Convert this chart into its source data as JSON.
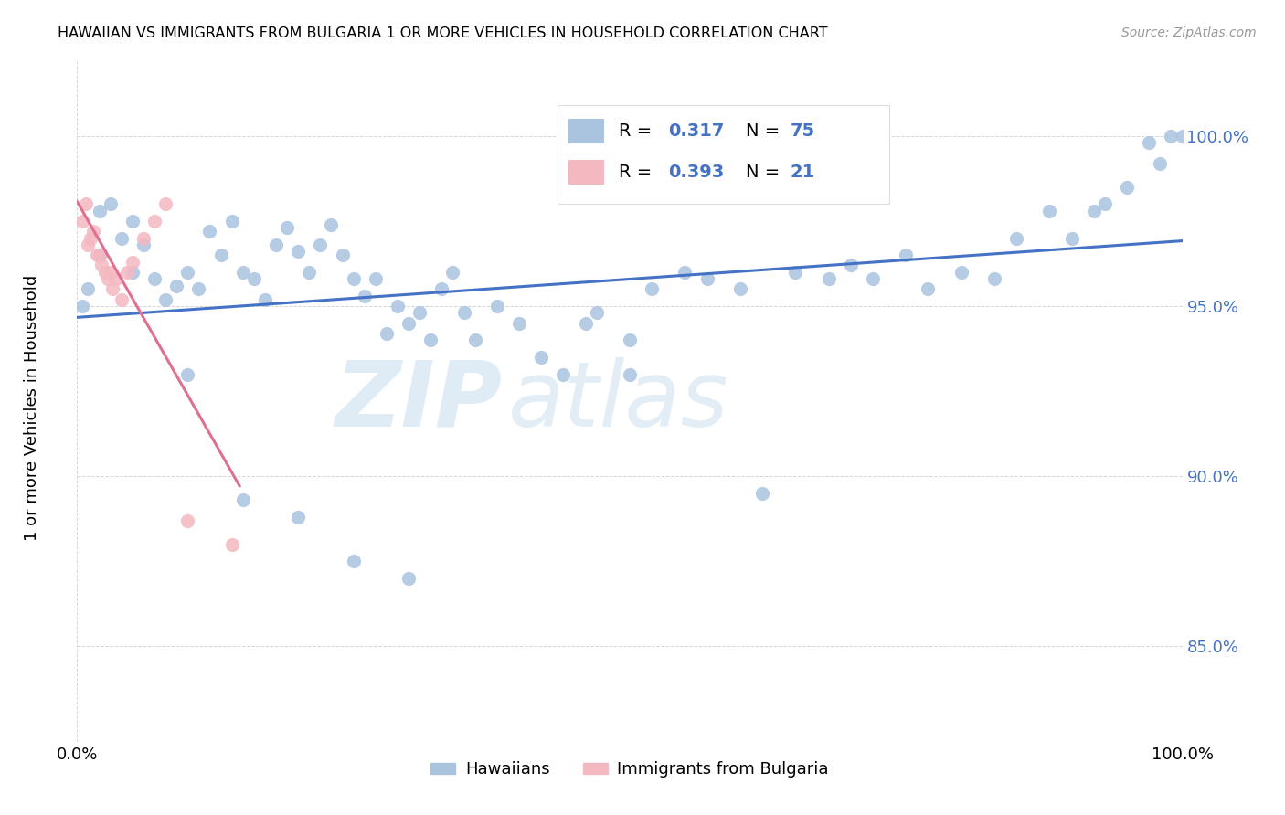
{
  "title": "HAWAIIAN VS IMMIGRANTS FROM BULGARIA 1 OR MORE VEHICLES IN HOUSEHOLD CORRELATION CHART",
  "source": "Source: ZipAtlas.com",
  "ylabel": "1 or more Vehicles in Household",
  "ytick_labels": [
    "85.0%",
    "90.0%",
    "95.0%",
    "100.0%"
  ],
  "ytick_values": [
    0.85,
    0.9,
    0.95,
    1.0
  ],
  "xtick_labels": [
    "0.0%",
    "100.0%"
  ],
  "xtick_values": [
    0.0,
    1.0
  ],
  "xlim": [
    0.0,
    1.0
  ],
  "ylim": [
    0.822,
    1.022
  ],
  "legend_hawaiian": "Hawaiians",
  "legend_bulgaria": "Immigrants from Bulgaria",
  "r_hawaiian": "0.317",
  "n_hawaiian": "75",
  "r_bulgaria": "0.393",
  "n_bulgaria": "21",
  "hawaiian_color": "#aac4e0",
  "hawaii_line_color": "#4472c4",
  "bulgaria_color": "#f4b8c1",
  "bulgaria_line_color": "#e07090",
  "legend_value_color": "#4472c4",
  "ytick_color": "#4472c4",
  "scatter_size": 120,
  "line_width": 2.2,
  "grid_color": "#cccccc",
  "title_fontsize": 11.5,
  "source_fontsize": 10,
  "tick_fontsize": 13,
  "legend_fontsize": 13,
  "hawaii_x": [
    0.005,
    0.01,
    0.02,
    0.02,
    0.03,
    0.04,
    0.05,
    0.05,
    0.06,
    0.07,
    0.08,
    0.09,
    0.1,
    0.11,
    0.12,
    0.13,
    0.14,
    0.15,
    0.16,
    0.17,
    0.18,
    0.19,
    0.2,
    0.21,
    0.22,
    0.23,
    0.24,
    0.25,
    0.26,
    0.27,
    0.28,
    0.29,
    0.3,
    0.31,
    0.32,
    0.33,
    0.34,
    0.35,
    0.36,
    0.38,
    0.4,
    0.42,
    0.44,
    0.46,
    0.47,
    0.5,
    0.52,
    0.55,
    0.57,
    0.6,
    0.62,
    0.65,
    0.68,
    0.7,
    0.72,
    0.75,
    0.77,
    0.8,
    0.83,
    0.85,
    0.88,
    0.9,
    0.92,
    0.93,
    0.95,
    0.97,
    0.98,
    0.99,
    1.0,
    0.1,
    0.15,
    0.2,
    0.25,
    0.3,
    0.5
  ],
  "hawaii_y": [
    0.95,
    0.955,
    0.978,
    0.965,
    0.98,
    0.97,
    0.975,
    0.96,
    0.968,
    0.958,
    0.952,
    0.956,
    0.96,
    0.955,
    0.972,
    0.965,
    0.975,
    0.96,
    0.958,
    0.952,
    0.968,
    0.973,
    0.966,
    0.96,
    0.968,
    0.974,
    0.965,
    0.958,
    0.953,
    0.958,
    0.942,
    0.95,
    0.945,
    0.948,
    0.94,
    0.955,
    0.96,
    0.948,
    0.94,
    0.95,
    0.945,
    0.935,
    0.93,
    0.945,
    0.948,
    0.94,
    0.955,
    0.96,
    0.958,
    0.955,
    0.895,
    0.96,
    0.958,
    0.962,
    0.958,
    0.965,
    0.955,
    0.96,
    0.958,
    0.97,
    0.978,
    0.97,
    0.978,
    0.98,
    0.985,
    0.998,
    0.992,
    1.0,
    1.0,
    0.93,
    0.893,
    0.888,
    0.875,
    0.87,
    0.93
  ],
  "bulgaria_x": [
    0.005,
    0.008,
    0.01,
    0.012,
    0.015,
    0.018,
    0.02,
    0.022,
    0.025,
    0.028,
    0.03,
    0.032,
    0.035,
    0.04,
    0.045,
    0.05,
    0.06,
    0.07,
    0.08,
    0.1,
    0.14
  ],
  "bulgaria_y": [
    0.975,
    0.98,
    0.968,
    0.97,
    0.972,
    0.965,
    0.965,
    0.962,
    0.96,
    0.958,
    0.96,
    0.955,
    0.958,
    0.952,
    0.96,
    0.963,
    0.97,
    0.975,
    0.98,
    0.887,
    0.88
  ]
}
